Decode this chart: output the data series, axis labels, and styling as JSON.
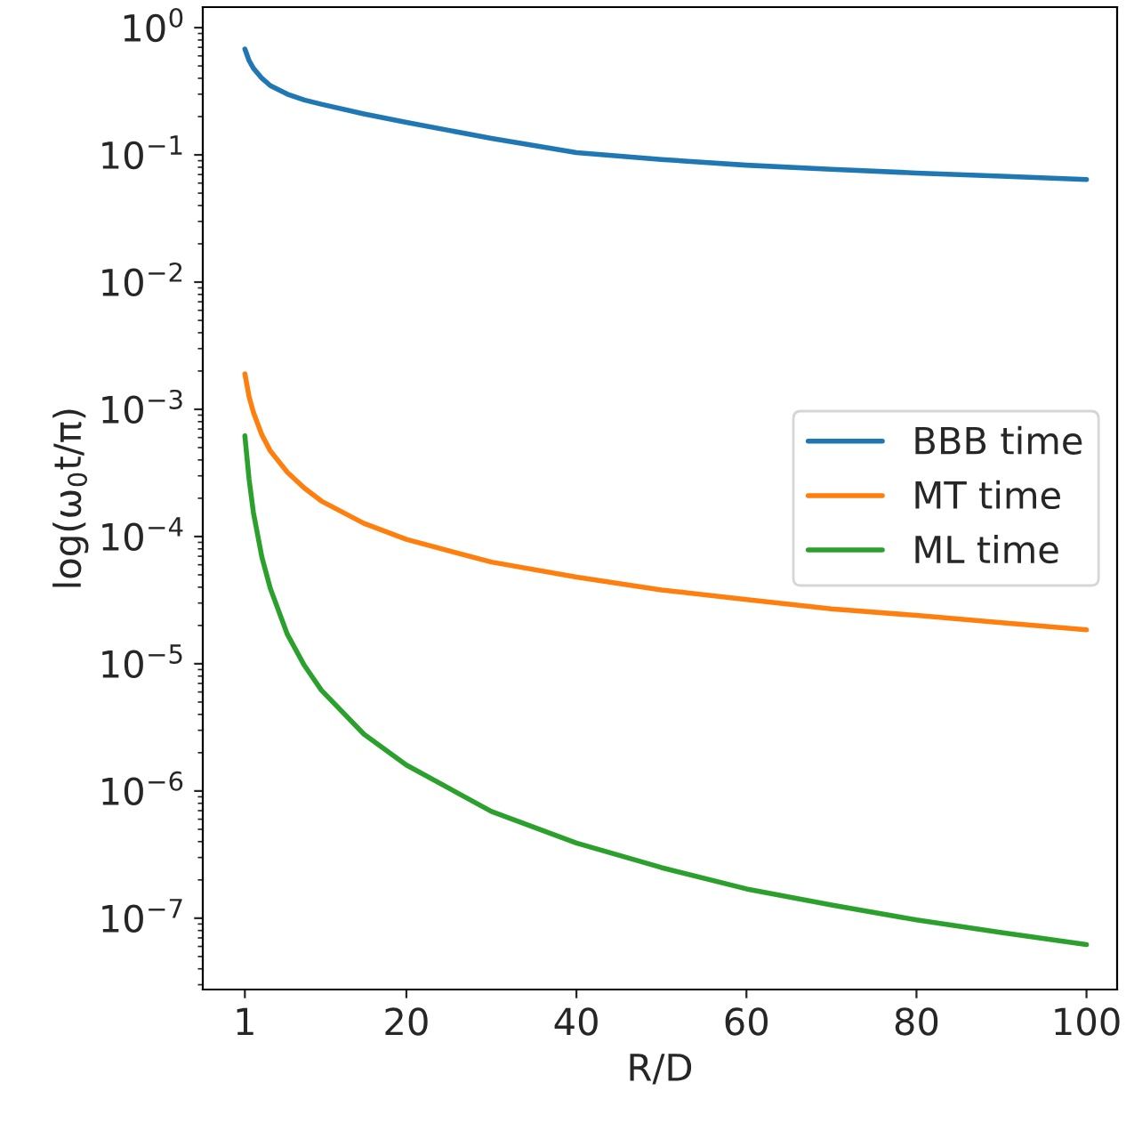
{
  "chart_data": {
    "type": "line",
    "xlabel": "R/D",
    "ylabel": "log(ω$_{0}$t/π)",
    "log": "y",
    "grid": false,
    "legend": "center right",
    "x": [
      1,
      1.5,
      2,
      3,
      4,
      6,
      8,
      10,
      15,
      20,
      30,
      40,
      50,
      60,
      70,
      80,
      90,
      100
    ],
    "series": [
      {
        "name": "BBB time",
        "color": "#1f77b4",
        "values": [
          0.68,
          0.55,
          0.48,
          0.4,
          0.35,
          0.3,
          0.27,
          0.25,
          0.21,
          0.18,
          0.135,
          0.104,
          0.092,
          0.083,
          0.077,
          0.072,
          0.068,
          0.064
        ]
      },
      {
        "name": "MT time",
        "color": "#ff7f0e",
        "values": [
          0.0019,
          0.00125,
          0.00095,
          0.00063,
          0.00047,
          0.00032,
          0.00024,
          0.00019,
          0.000127,
          9.5e-05,
          6.3e-05,
          4.8e-05,
          3.8e-05,
          3.2e-05,
          2.7e-05,
          2.4e-05,
          2.1e-05,
          1.85e-05
        ]
      },
      {
        "name": "ML time",
        "color": "#2ca02c",
        "values": [
          0.00062,
          0.00028,
          0.000155,
          6.9e-05,
          3.9e-05,
          1.7e-05,
          9.7e-06,
          6.2e-06,
          2.8e-06,
          1.6e-06,
          6.9e-07,
          3.9e-07,
          2.5e-07,
          1.7e-07,
          1.27e-07,
          9.7e-08,
          7.7e-08,
          6.2e-08
        ]
      }
    ],
    "xlim": [
      -3.95,
      103.6
    ],
    "xticks": [
      1,
      20,
      40,
      60,
      80,
      100
    ],
    "ylim": [
      2.75e-08,
      1.45
    ],
    "yticks": [
      {
        "value": 1,
        "label": "10$^{0}$"
      },
      {
        "value": 0.1,
        "label": "10$^{−1}$"
      },
      {
        "value": 0.01,
        "label": "10$^{−2}$"
      },
      {
        "value": 0.001,
        "label": "10$^{−3}$"
      },
      {
        "value": 0.0001,
        "label": "10$^{−4}$"
      },
      {
        "value": 1e-05,
        "label": "10$^{−5}$"
      },
      {
        "value": 1e-06,
        "label": "10$^{−6}$"
      },
      {
        "value": 1e-07,
        "label": "10$^{−7}$"
      }
    ]
  }
}
